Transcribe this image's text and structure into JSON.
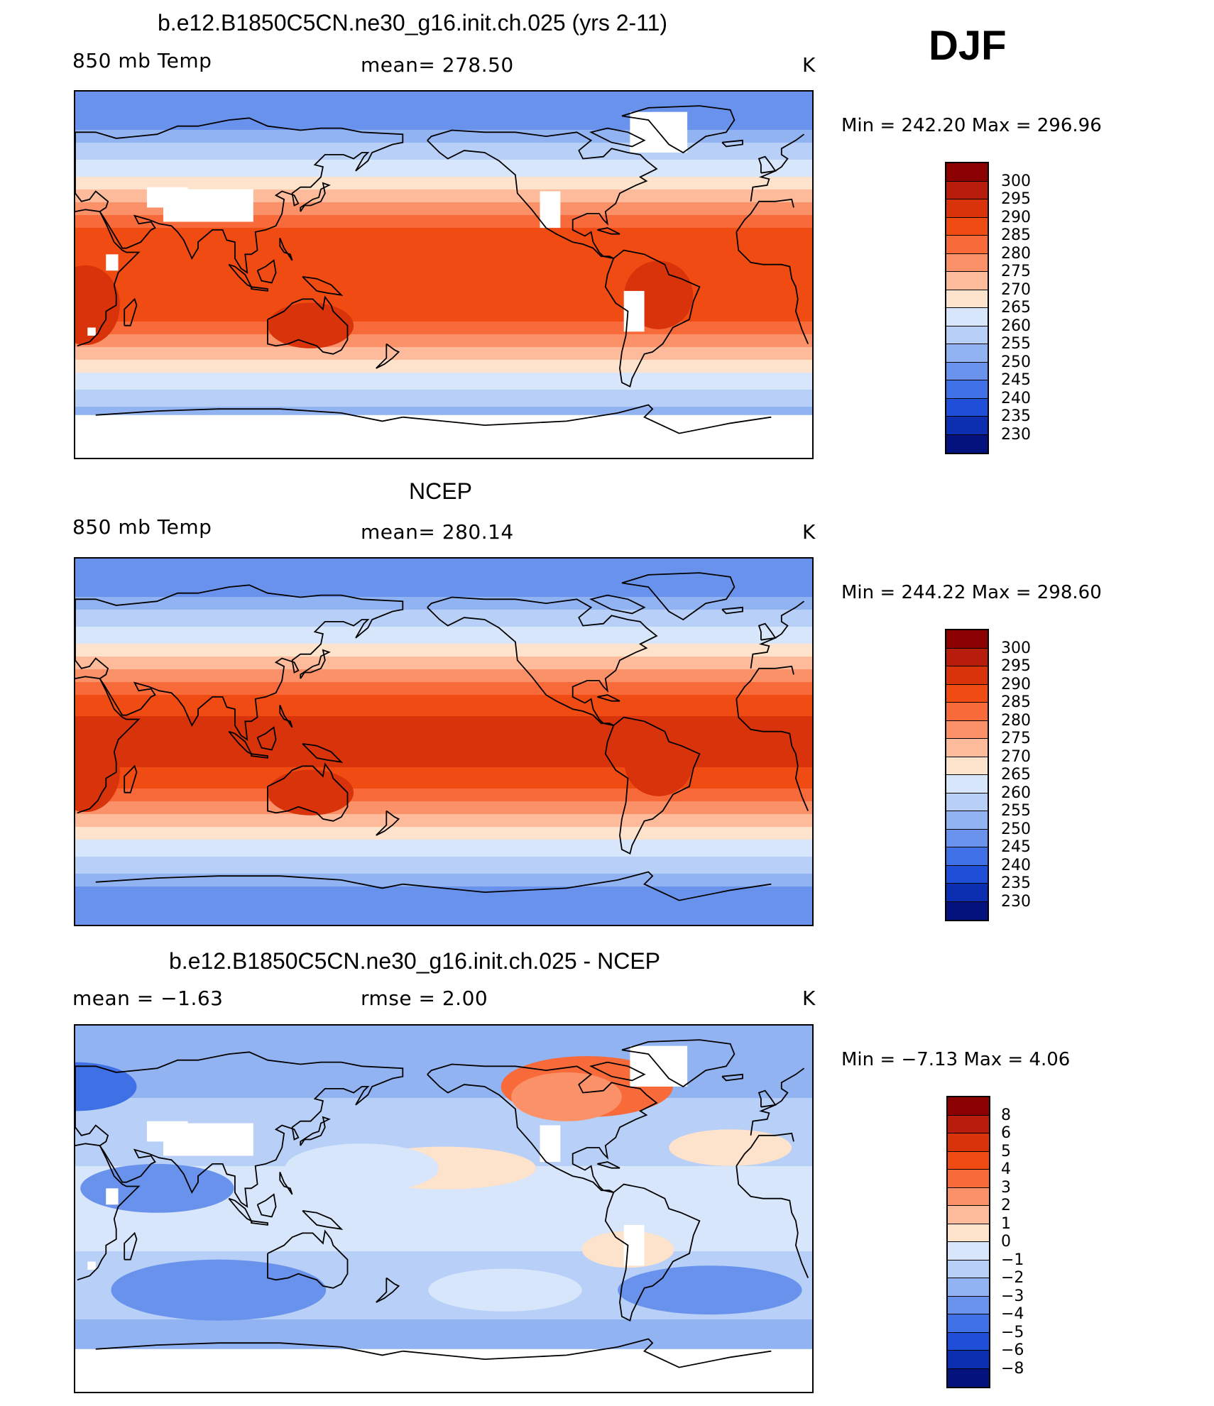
{
  "season": "DJF",
  "panels": [
    {
      "id": "model",
      "title": "b.e12.B1850C5CN.ne30_g16.init.ch.025 (yrs 2-11)",
      "left_label": "850 mb Temp",
      "center_label": "mean=  278.50",
      "units": "K",
      "min_max": "Min  =  242.20  Max  =  296.96",
      "colorbar_labels": [
        "300",
        "295",
        "290",
        "285",
        "280",
        "275",
        "270",
        "265",
        "260",
        "255",
        "250",
        "245",
        "240",
        "235",
        "230"
      ],
      "field": "temperature",
      "blank_regions": [
        "greenland",
        "tibet",
        "andes",
        "rockies",
        "africa-highlands",
        "antarctica"
      ]
    },
    {
      "id": "obs",
      "title": "NCEP",
      "left_label": "850 mb Temp",
      "center_label": "mean=  280.14",
      "units": "K",
      "min_max": "Min  =  244.22  Max  =  298.60",
      "colorbar_labels": [
        "300",
        "295",
        "290",
        "285",
        "280",
        "275",
        "270",
        "265",
        "260",
        "255",
        "250",
        "245",
        "240",
        "235",
        "230"
      ],
      "field": "temperature",
      "blank_regions": []
    },
    {
      "id": "diff",
      "title": "b.e12.B1850C5CN.ne30_g16.init.ch.025 - NCEP",
      "left_label": "mean  =   −1.63",
      "center_label": "rmse  =    2.00",
      "units": "K",
      "min_max": "Min  =   −7.13  Max  =    4.06",
      "colorbar_labels": [
        "8",
        "6",
        "5",
        "4",
        "3",
        "2",
        "1",
        "0",
        "−1",
        "−2",
        "−3",
        "−4",
        "−5",
        "−6",
        "−8"
      ],
      "field": "difference",
      "blank_regions": [
        "greenland",
        "tibet",
        "andes",
        "rockies",
        "africa-highlands",
        "antarctica"
      ]
    }
  ],
  "colorbar_colors": [
    "#8b0000",
    "#b71c0c",
    "#d8330a",
    "#ef4b12",
    "#f96a3b",
    "#fb9168",
    "#fdbb9b",
    "#fde2cc",
    "#d7e6fa",
    "#b8d0f7",
    "#92b3f2",
    "#6892ec",
    "#3f70e6",
    "#1f4fd9",
    "#0c2eb0",
    "#04127e"
  ]
}
